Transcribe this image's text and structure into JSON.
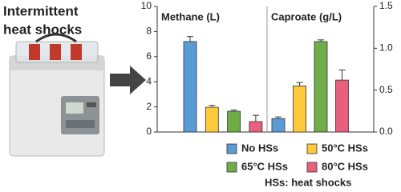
{
  "header": {
    "lines": [
      "Intermittent",
      "heat shocks"
    ]
  },
  "chart_data": {
    "type": "bar",
    "categories": [
      "Methane (L)",
      "Caproate (g/L)"
    ],
    "category_axis": [
      "y",
      "y2"
    ],
    "series": [
      {
        "name": "No HSs",
        "color": "#5b9bd5",
        "values": [
          7.2,
          0.16
        ],
        "errors": [
          0.4,
          0.02
        ]
      },
      {
        "name": "50°C HSs",
        "color": "#ffc93c",
        "values": [
          1.97,
          0.55
        ],
        "errors": [
          0.15,
          0.04
        ]
      },
      {
        "name": "65°C HSs",
        "color": "#70ad47",
        "values": [
          1.65,
          1.08
        ],
        "errors": [
          0.1,
          0.02
        ]
      },
      {
        "name": "80°C HSs",
        "color": "#e8607e",
        "values": [
          0.83,
          0.62
        ],
        "errors": [
          0.5,
          0.12
        ]
      }
    ],
    "ylim": [
      0,
      10
    ],
    "yticks": [
      0,
      2,
      4,
      6,
      8,
      10
    ],
    "y2lim": [
      0,
      1.5
    ],
    "y2ticks": [
      {
        "value": 0,
        "label": "0.0"
      },
      {
        "value": 0.5,
        "label": "0.5"
      },
      {
        "value": 1,
        "label": "1.0"
      },
      {
        "value": 1.5,
        "label": "1.5"
      }
    ],
    "legend_note": "HSs: heat shocks"
  }
}
